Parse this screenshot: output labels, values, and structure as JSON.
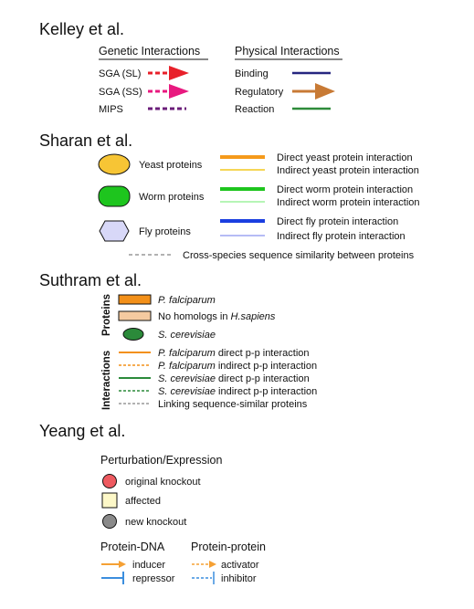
{
  "sections": {
    "kelley": {
      "title": "Kelley et al.",
      "genetic_header": "Genetic Interactions",
      "physical_header": "Physical Interactions",
      "genetic": [
        "SGA (SL)",
        "SGA (SS)",
        "MIPS"
      ],
      "physical": [
        "Binding",
        "Regulatory",
        "Reaction"
      ]
    },
    "sharan": {
      "title": "Sharan et al.",
      "proteins": [
        "Yeast proteins",
        "Worm proteins",
        "Fly proteins"
      ],
      "edges": [
        "Direct yeast protein interaction",
        "Indirect yeast protein interaction",
        "Direct worm protein interaction",
        "Indirect worm protein interaction",
        "Direct fly protein interaction",
        "Indirect fly protein interaction"
      ],
      "cross": "Cross-species sequence similarity between proteins"
    },
    "suthram": {
      "title": "Suthram et al.",
      "proteins_label": "Proteins",
      "interactions_label": "Interactions",
      "p_falciparum": "P. falciparum",
      "no_homologs_prefix": "No homologs in ",
      "no_homologs_species": "H.sapiens",
      "s_cerevisiae": "S. cerevisiae",
      "interactions": [
        {
          "species": "P. falciparum",
          "rest": " direct p-p interaction"
        },
        {
          "species": "P. falciparum",
          "rest": " indirect p-p interaction"
        },
        {
          "species": "S. cerevisiae",
          "rest": " direct p-p interaction"
        },
        {
          "species": "S. cerevisiae",
          "rest": " indirect p-p interaction"
        },
        {
          "species": "",
          "rest": "Linking sequence-similar proteins"
        }
      ]
    },
    "yeang": {
      "title": "Yeang et al.",
      "perturbation_header": "Perturbation/Expression",
      "perturbation": [
        "original knockout",
        "affected",
        "new knockout"
      ],
      "protein_dna_header": "Protein-DNA",
      "protein_protein_header": "Protein-protein",
      "inducer": "inducer",
      "repressor": "repressor",
      "activator": "activator",
      "inhibitor": "inhibitor"
    }
  },
  "colors": {
    "sga_sl": "#e8202a",
    "sga_ss": "#e8197f",
    "mips": "#6b1e7a",
    "binding": "#262680",
    "regulatory": "#c87a35",
    "reaction": "#2e8b3a",
    "yeast": "#f7c535",
    "yeast_direct": "#f59a1b",
    "yeast_indirect": "#f2c81f",
    "worm": "#1ec51e",
    "worm_direct": "#1ec51e",
    "worm_indirect": "#9ef29e",
    "fly": "#d8d8f8",
    "fly_direct": "#1a3ee0",
    "fly_indirect": "#9da6f2",
    "p_falciparum": "#f39019",
    "no_homologs": "#f5caa0",
    "s_cerevisiae": "#2b8a3a",
    "original_knockout": "#ee5a60",
    "affected": "#fdf8c8",
    "new_knockout": "#8a8a8a",
    "inducer": "#f5a034",
    "repressor": "#3b8ede"
  }
}
